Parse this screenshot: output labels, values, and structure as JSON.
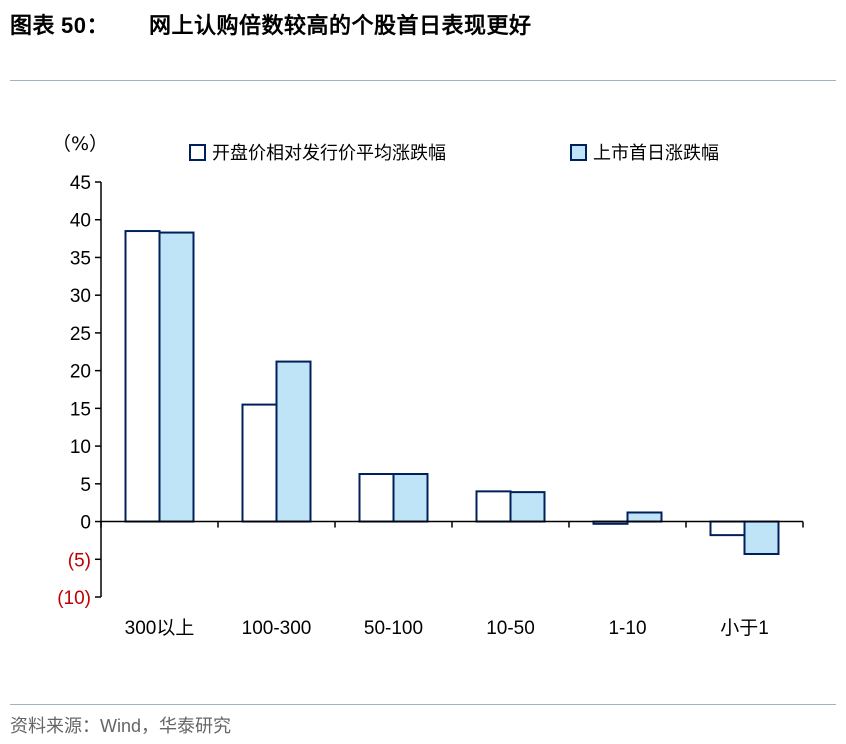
{
  "header": {
    "label": "图表",
    "number": "50：",
    "title": "网上认购倍数较高的个股首日表现更好"
  },
  "source": {
    "prefix": "资料来源：",
    "wind": "Wind",
    "suffix": "，华泰研究"
  },
  "chart_data": {
    "type": "bar",
    "unit_label": "（%）",
    "categories": [
      "300以上",
      "100-300",
      "50-100",
      "10-50",
      "1-10",
      "小于1"
    ],
    "series": [
      {
        "name": "开盘价相对发行价平均涨跌幅",
        "values": [
          38.5,
          15.5,
          6.3,
          4.0,
          -0.3,
          -1.8
        ],
        "color": "#ffffff"
      },
      {
        "name": "上市首日涨跌幅",
        "values": [
          38.3,
          21.2,
          6.3,
          3.9,
          1.2,
          -4.3
        ],
        "color": "#bfe3f7"
      }
    ],
    "ylim": [
      -10,
      45
    ],
    "yticks": [
      45,
      40,
      35,
      30,
      25,
      20,
      15,
      10,
      5,
      0,
      -5,
      -10
    ],
    "ytick_labels": [
      "45",
      "40",
      "35",
      "30",
      "25",
      "20",
      "15",
      "10",
      "5",
      "0",
      "(5)",
      "(10)"
    ],
    "negative_tick_color": "#c00000",
    "bar_edge_color": "#00205b",
    "legend_position": "top"
  }
}
